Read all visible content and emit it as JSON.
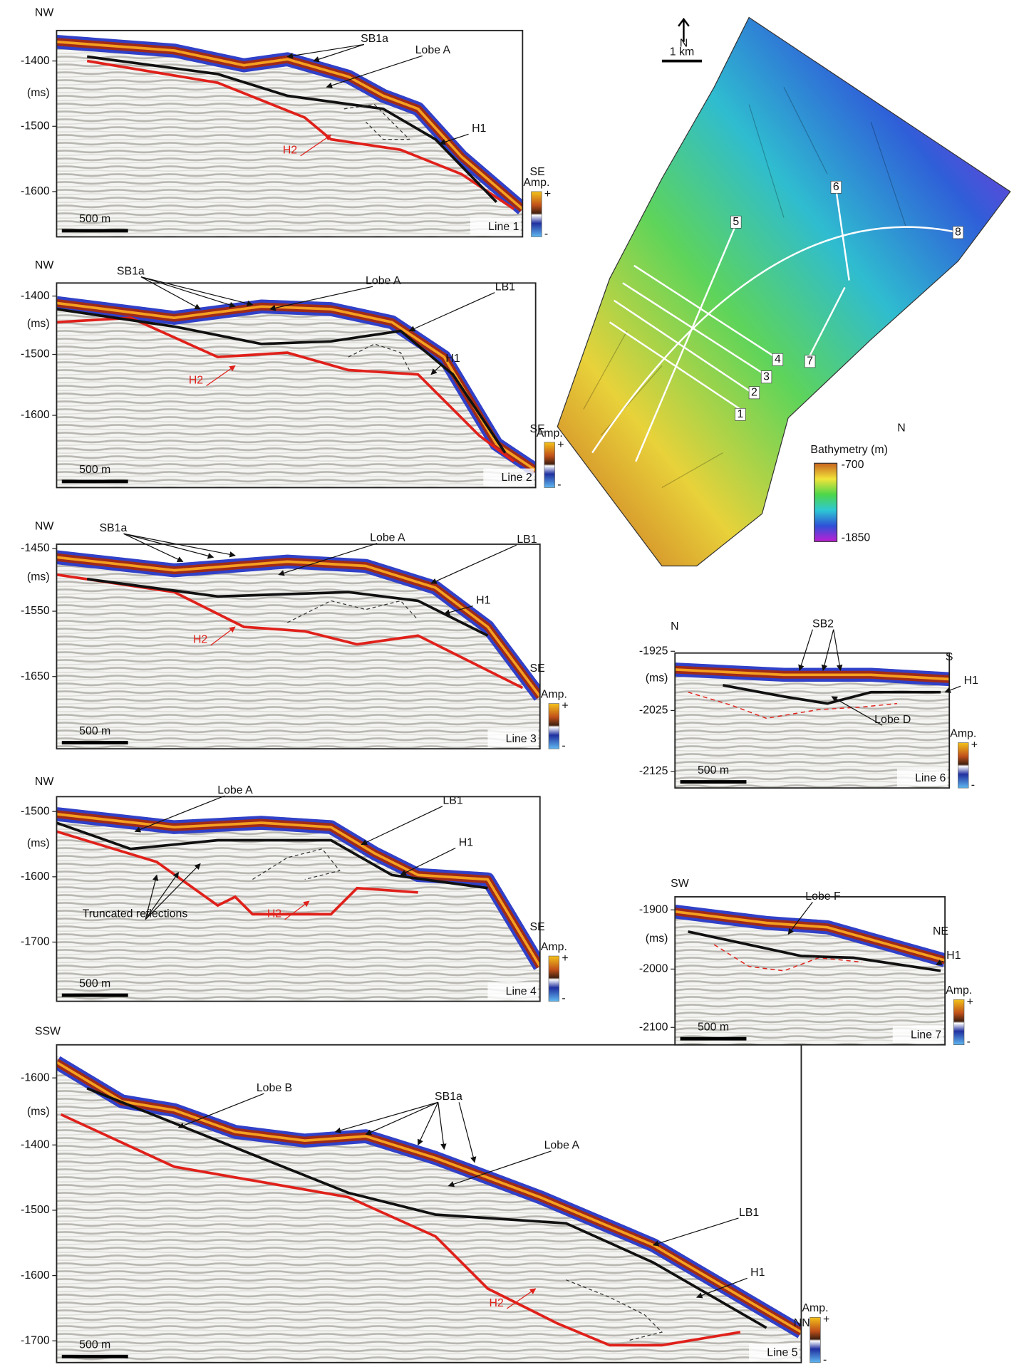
{
  "panels": [
    {
      "line": "Line 1",
      "left": "NW",
      "right": "SE",
      "yticks": [
        "-1400",
        "(ms)",
        "-1500",
        "-1600"
      ],
      "scale": "500 m",
      "amp": "Amp.",
      "amp_plus": "+",
      "amp_minus": "-",
      "annotations": [
        "SB1a",
        "Lobe A",
        "H1",
        "H2"
      ]
    },
    {
      "line": "Line 2",
      "left": "NW",
      "right": "SE",
      "yticks": [
        "-1400",
        "(ms)",
        "-1500",
        "-1600"
      ],
      "scale": "500 m",
      "amp": "Amp.",
      "amp_plus": "+",
      "amp_minus": "-",
      "annotations": [
        "SB1a",
        "Lobe A",
        "LB1",
        "H1",
        "H2"
      ]
    },
    {
      "line": "Line 3",
      "left": "NW",
      "right": "SE",
      "yticks": [
        "-1450",
        "(ms)",
        "-1550",
        "-1650"
      ],
      "scale": "500 m",
      "amp": "Amp.",
      "amp_plus": "+",
      "amp_minus": "-",
      "annotations": [
        "SB1a",
        "Lobe A",
        "LB1",
        "H1",
        "H2"
      ]
    },
    {
      "line": "Line 4",
      "left": "NW",
      "right": "SE",
      "yticks": [
        "-1500",
        "(ms)",
        "-1600",
        "-1700"
      ],
      "scale": "500 m",
      "amp": "Amp.",
      "amp_plus": "+",
      "amp_minus": "-",
      "annotations": [
        "Lobe A",
        "LB1",
        "H1",
        "Truncated reflections",
        "H2"
      ]
    },
    {
      "line": "Line 5",
      "left": "SSW",
      "right": "NNE",
      "yticks": [
        "-1600",
        "(ms)",
        "-1400",
        "-1500",
        "-1600",
        "-1700"
      ],
      "scale": "500 m",
      "amp": "Amp.",
      "amp_plus": "+",
      "amp_minus": "-",
      "annotations": [
        "Lobe B",
        "SB1a",
        "Lobe A",
        "LB1",
        "H1",
        "H2"
      ]
    },
    {
      "line": "Line 6",
      "left": "N",
      "right": "S",
      "yticks": [
        "-1925",
        "(ms)",
        "-2025",
        "-2125"
      ],
      "scale": "500 m",
      "amp": "Amp.",
      "amp_plus": "+",
      "amp_minus": "-",
      "annotations": [
        "SB2",
        "H1",
        "Lobe D"
      ]
    },
    {
      "line": "Line 7",
      "left": "SW",
      "right": "NE",
      "yticks": [
        "-1900",
        "(ms)",
        "-2000",
        "-2100"
      ],
      "scale": "500 m",
      "amp": "Amp.",
      "amp_plus": "+",
      "amp_minus": "-",
      "annotations": [
        "Lobe F",
        "H1"
      ]
    }
  ],
  "map": {
    "north": "N",
    "scale": "1 km",
    "lines": [
      "1",
      "2",
      "3",
      "4",
      "5",
      "6",
      "7",
      "8"
    ],
    "colorbar_title": "Bathymetry (m)",
    "colorbar_top": "-700",
    "colorbar_bottom": "-1850",
    "colorbar_north": "N"
  }
}
